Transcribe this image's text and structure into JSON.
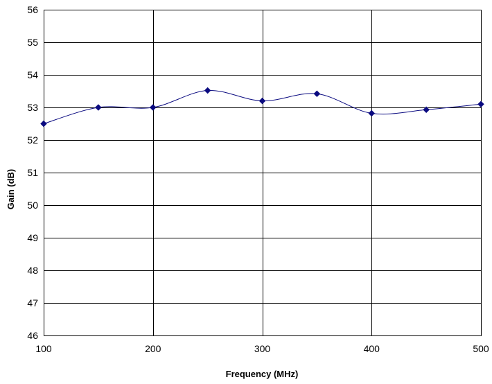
{
  "chart_data": {
    "type": "line",
    "title": "",
    "xlabel": "Frequency (MHz)",
    "ylabel": "Gain (dB)",
    "xlim": [
      100,
      500
    ],
    "ylim": [
      46,
      56
    ],
    "x_ticks": [
      100,
      200,
      300,
      400,
      500
    ],
    "y_ticks": [
      46,
      47,
      48,
      49,
      50,
      51,
      52,
      53,
      54,
      55,
      56
    ],
    "grid": true,
    "legend": "none",
    "smoothed": true,
    "series": [
      {
        "color": "#0a0a80",
        "marker": "diamond",
        "x": [
          100,
          150,
          200,
          250,
          300,
          350,
          400,
          450,
          500
        ],
        "y": [
          52.5,
          53.0,
          53.0,
          53.52,
          53.2,
          53.42,
          52.82,
          52.93,
          53.1
        ]
      }
    ]
  }
}
